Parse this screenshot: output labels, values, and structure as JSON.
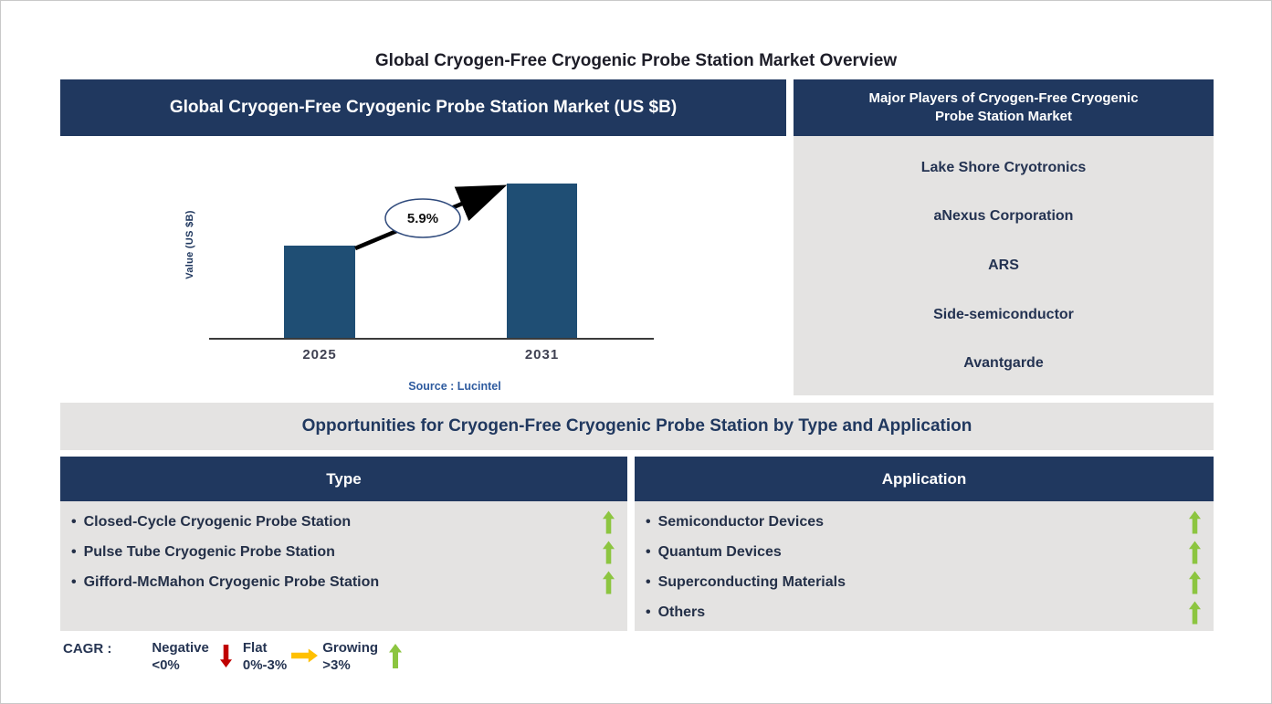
{
  "page_title": "Global Cryogen-Free Cryogenic Probe Station Market Overview",
  "colors": {
    "header_navy": "#20385F",
    "bar_blue": "#1F4E74",
    "panel_gray": "#E4E3E2",
    "growing_green": "#8CC540",
    "negative_red": "#C00000",
    "flat_yellow": "#FFC000",
    "source_blue": "#2E5B9F"
  },
  "chart_panel": {
    "header": "Global Cryogen-Free Cryogenic Probe Station Market (US $B)"
  },
  "chart_data": {
    "type": "bar",
    "title": "Global Cryogen-Free Cryogenic Probe Station Market (US $B)",
    "categories": [
      "2025",
      "2031"
    ],
    "values_relative": [
      0.6,
      1.0
    ],
    "ylabel": "Value (US $B)",
    "y_axis_tick_labels": [],
    "cagr_label": "5.9%",
    "source": "Source : Lucintel",
    "bar_color": "#1F4E74",
    "grid": false,
    "legend_position": "none"
  },
  "major_players": {
    "header": "Major Players of Cryogen-Free Cryogenic Probe Station Market",
    "companies": [
      "Lake Shore Cryotronics",
      "aNexus Corporation",
      "ARS",
      "Side-semiconductor",
      "Avantgarde"
    ]
  },
  "opportunities": {
    "banner": "Opportunities for Cryogen-Free Cryogenic Probe Station by Type and Application",
    "type_column": {
      "header": "Type",
      "items": [
        {
          "label": "Closed-Cycle Cryogenic Probe Station",
          "trend": "growing"
        },
        {
          "label": "Pulse Tube Cryogenic Probe Station",
          "trend": "growing"
        },
        {
          "label": "Gifford-McMahon Cryogenic Probe Station",
          "trend": "growing"
        }
      ]
    },
    "application_column": {
      "header": "Application",
      "items": [
        {
          "label": "Semiconductor Devices",
          "trend": "growing"
        },
        {
          "label": "Quantum Devices",
          "trend": "growing"
        },
        {
          "label": "Superconducting Materials",
          "trend": "growing"
        },
        {
          "label": "Others",
          "trend": "growing"
        }
      ]
    }
  },
  "legend": {
    "prefix": "CAGR :",
    "items": [
      {
        "label": "Negative",
        "range": "<0%",
        "arrow": "down",
        "color": "#C00000"
      },
      {
        "label": "Flat",
        "range": "0%-3%",
        "arrow": "right",
        "color": "#FFC000"
      },
      {
        "label": "Growing",
        "range": ">3%",
        "arrow": "up",
        "color": "#8CC540"
      }
    ]
  }
}
